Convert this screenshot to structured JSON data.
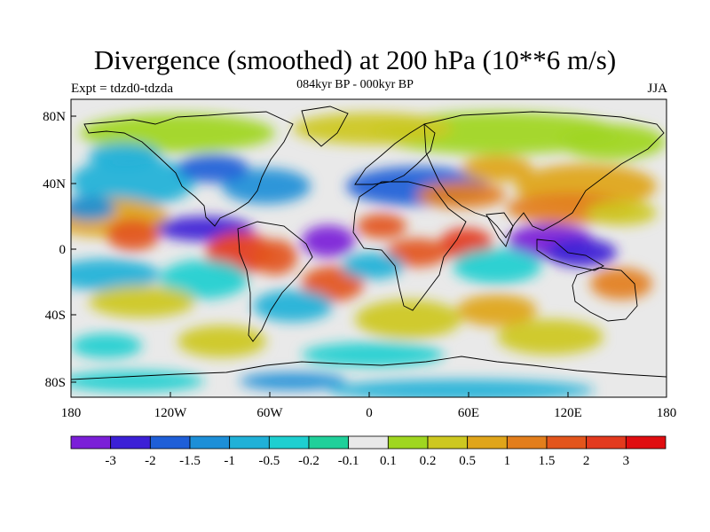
{
  "title": "Divergence (smoothed) at 200 hPa (10**6 m/s)",
  "subtitle": "084kyr BP - 000kyr BP",
  "expt": "Expt = tdzd0-tdzda",
  "season": "JJA",
  "axes": {
    "lat_ticks": [
      "80N",
      "40N",
      "0",
      "40S",
      "80S"
    ],
    "lon_ticks": [
      "180",
      "120W",
      "60W",
      "0",
      "60E",
      "120E",
      "180"
    ]
  },
  "colorbar": {
    "labels": [
      "-3",
      "-2",
      "-1.5",
      "-1",
      "-0.5",
      "-0.2",
      "-0.1",
      "0.1",
      "0.2",
      "0.5",
      "1",
      "1.5",
      "2",
      "3"
    ],
    "colors": [
      "#7b1fd8",
      "#3c20d6",
      "#1f5fd8",
      "#1d8fd8",
      "#20b1d8",
      "#1ecfd0",
      "#20d09a",
      "#e9e9e9",
      "#9fd620",
      "#cdc820",
      "#e0a51a",
      "#e37e1c",
      "#e3551c",
      "#e33a1e",
      "#e00d10"
    ]
  },
  "colors": {
    "land_outline": "#000000",
    "background": "#e9e9e9"
  }
}
